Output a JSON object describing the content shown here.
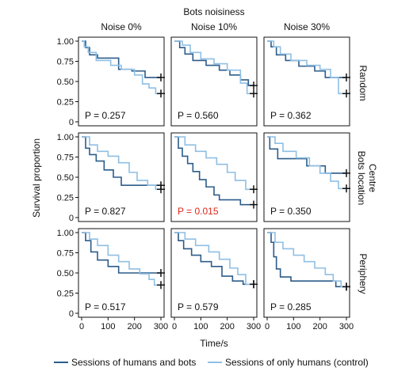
{
  "figure": {
    "top_title": "Bots noisiness",
    "columns": [
      "Noise 0%",
      "Noise 10%",
      "Noise 30%"
    ],
    "rows": [
      "Random",
      "Centre",
      "Periphery"
    ],
    "row_group_title": "Bots location",
    "ylabel": "Survival proportion",
    "xlabel": "Time/s",
    "legend": [
      {
        "name": "Sessions of humans and bots",
        "color": "#2c5c8a"
      },
      {
        "name": "Sessions of only humans (control)",
        "color": "#8fbfe3"
      }
    ],
    "y_ticks": [
      "1.00",
      "0.75",
      "0.50",
      "0.25",
      "0"
    ],
    "x_ticks": [
      "0",
      "100",
      "200",
      "300"
    ]
  },
  "chart_data": [
    {
      "type": "line",
      "row": "Random",
      "column": "Noise 0%",
      "p_value": "P = 0.257",
      "significant": false,
      "xlim": [
        0,
        300
      ],
      "ylim": [
        0,
        1
      ],
      "series": [
        {
          "name": "Sessions of humans and bots",
          "censor_at_end": true,
          "x": [
            0,
            15,
            30,
            60,
            140,
            190,
            240,
            300
          ],
          "y": [
            1.0,
            0.92,
            0.83,
            0.79,
            0.65,
            0.63,
            0.55,
            0.55
          ]
        },
        {
          "name": "Sessions of only humans (control)",
          "censor_at_end": true,
          "x": [
            0,
            10,
            25,
            55,
            110,
            150,
            200,
            230,
            255,
            280,
            300
          ],
          "y": [
            1.0,
            0.93,
            0.86,
            0.76,
            0.7,
            0.65,
            0.58,
            0.47,
            0.42,
            0.35,
            0.35
          ]
        }
      ]
    },
    {
      "type": "line",
      "row": "Random",
      "column": "Noise 10%",
      "p_value": "P = 0.560",
      "significant": false,
      "xlim": [
        0,
        300
      ],
      "ylim": [
        0,
        1
      ],
      "series": [
        {
          "name": "Sessions of humans and bots",
          "censor_at_end": true,
          "x": [
            0,
            20,
            40,
            70,
            120,
            170,
            210,
            250,
            280,
            300
          ],
          "y": [
            1.0,
            0.92,
            0.84,
            0.76,
            0.7,
            0.64,
            0.58,
            0.52,
            0.45,
            0.45
          ]
        },
        {
          "name": "Sessions of only humans (control)",
          "censor_at_end": true,
          "x": [
            0,
            30,
            60,
            100,
            150,
            200,
            250,
            275,
            300
          ],
          "y": [
            1.0,
            0.95,
            0.86,
            0.78,
            0.72,
            0.64,
            0.48,
            0.35,
            0.35
          ]
        }
      ]
    },
    {
      "type": "line",
      "row": "Random",
      "column": "Noise 30%",
      "p_value": "P = 0.362",
      "significant": false,
      "xlim": [
        0,
        300
      ],
      "ylim": [
        0,
        1
      ],
      "series": [
        {
          "name": "Sessions of humans and bots",
          "censor_at_end": true,
          "x": [
            0,
            15,
            35,
            70,
            120,
            180,
            220,
            300
          ],
          "y": [
            1.0,
            0.93,
            0.83,
            0.76,
            0.69,
            0.63,
            0.55,
            0.55
          ]
        },
        {
          "name": "Sessions of only humans (control)",
          "censor_at_end": true,
          "x": [
            0,
            25,
            50,
            90,
            150,
            200,
            240,
            270,
            300
          ],
          "y": [
            1.0,
            0.93,
            0.84,
            0.76,
            0.7,
            0.65,
            0.55,
            0.35,
            0.35
          ]
        }
      ]
    },
    {
      "type": "line",
      "row": "Centre",
      "column": "Noise 0%",
      "p_value": "P = 0.827",
      "significant": false,
      "xlim": [
        0,
        300
      ],
      "ylim": [
        0,
        1
      ],
      "series": [
        {
          "name": "Sessions of humans and bots",
          "censor_at_end": true,
          "x": [
            0,
            15,
            30,
            55,
            85,
            120,
            150,
            200,
            300
          ],
          "y": [
            1.0,
            0.86,
            0.78,
            0.7,
            0.59,
            0.5,
            0.4,
            0.4,
            0.4
          ]
        },
        {
          "name": "Sessions of only humans (control)",
          "censor_at_end": true,
          "x": [
            0,
            30,
            60,
            100,
            140,
            180,
            210,
            250,
            280,
            300
          ],
          "y": [
            1.0,
            0.9,
            0.82,
            0.76,
            0.68,
            0.56,
            0.46,
            0.4,
            0.35,
            0.35
          ]
        }
      ]
    },
    {
      "type": "line",
      "row": "Centre",
      "column": "Noise 10%",
      "p_value": "P = 0.015",
      "significant": true,
      "xlim": [
        0,
        300
      ],
      "ylim": [
        0,
        1
      ],
      "series": [
        {
          "name": "Sessions of humans and bots",
          "censor_at_end": true,
          "x": [
            0,
            15,
            30,
            50,
            70,
            95,
            120,
            150,
            170,
            250,
            300
          ],
          "y": [
            1.0,
            0.86,
            0.76,
            0.67,
            0.57,
            0.47,
            0.38,
            0.28,
            0.22,
            0.16,
            0.16
          ]
        },
        {
          "name": "Sessions of only humans (control)",
          "censor_at_end": true,
          "x": [
            0,
            40,
            80,
            120,
            160,
            200,
            230,
            270,
            300
          ],
          "y": [
            1.0,
            0.9,
            0.82,
            0.74,
            0.66,
            0.56,
            0.46,
            0.35,
            0.35
          ]
        }
      ]
    },
    {
      "type": "line",
      "row": "Centre",
      "column": "Noise 30%",
      "p_value": "P = 0.350",
      "significant": false,
      "xlim": [
        0,
        300
      ],
      "ylim": [
        0,
        1
      ],
      "series": [
        {
          "name": "Sessions of humans and bots",
          "censor_at_end": true,
          "x": [
            0,
            10,
            40,
            150,
            220,
            300
          ],
          "y": [
            1.0,
            0.85,
            0.73,
            0.64,
            0.55,
            0.55
          ]
        },
        {
          "name": "Sessions of only humans (control)",
          "censor_at_end": true,
          "x": [
            0,
            30,
            60,
            110,
            160,
            200,
            240,
            270,
            300
          ],
          "y": [
            1.0,
            0.92,
            0.82,
            0.74,
            0.64,
            0.55,
            0.45,
            0.36,
            0.36
          ]
        }
      ]
    },
    {
      "type": "line",
      "row": "Periphery",
      "column": "Noise 0%",
      "p_value": "P = 0.517",
      "significant": false,
      "xlim": [
        0,
        300
      ],
      "ylim": [
        0,
        1
      ],
      "series": [
        {
          "name": "Sessions of humans and bots",
          "censor_at_end": true,
          "x": [
            0,
            15,
            35,
            60,
            100,
            140,
            300
          ],
          "y": [
            1.0,
            0.9,
            0.76,
            0.66,
            0.58,
            0.5,
            0.5
          ]
        },
        {
          "name": "Sessions of only humans (control)",
          "censor_at_end": true,
          "x": [
            0,
            30,
            60,
            100,
            140,
            180,
            220,
            255,
            275,
            300
          ],
          "y": [
            1.0,
            0.92,
            0.84,
            0.72,
            0.64,
            0.55,
            0.49,
            0.42,
            0.35,
            0.35
          ]
        }
      ]
    },
    {
      "type": "line",
      "row": "Periphery",
      "column": "Noise 10%",
      "p_value": "P = 0.579",
      "significant": false,
      "xlim": [
        0,
        300
      ],
      "ylim": [
        0,
        1
      ],
      "series": [
        {
          "name": "Sessions of humans and bots",
          "censor_at_end": true,
          "x": [
            0,
            15,
            35,
            65,
            100,
            140,
            180,
            220,
            260,
            300
          ],
          "y": [
            1.0,
            0.9,
            0.8,
            0.72,
            0.64,
            0.58,
            0.46,
            0.4,
            0.36,
            0.36
          ]
        },
        {
          "name": "Sessions of only humans (control)",
          "censor_at_end": true,
          "x": [
            0,
            40,
            80,
            130,
            170,
            210,
            240,
            270,
            300
          ],
          "y": [
            1.0,
            0.92,
            0.84,
            0.76,
            0.67,
            0.56,
            0.48,
            0.36,
            0.36
          ]
        }
      ]
    },
    {
      "type": "line",
      "row": "Periphery",
      "column": "Noise 30%",
      "p_value": "P = 0.285",
      "significant": false,
      "xlim": [
        0,
        300
      ],
      "ylim": [
        0,
        1
      ],
      "series": [
        {
          "name": "Sessions of humans and bots",
          "censor_at_end": true,
          "x": [
            0,
            15,
            25,
            35,
            50,
            90,
            260,
            300
          ],
          "y": [
            1.0,
            0.88,
            0.7,
            0.55,
            0.45,
            0.4,
            0.33,
            0.33
          ]
        },
        {
          "name": "Sessions of only humans (control)",
          "censor_at_end": true,
          "x": [
            0,
            30,
            60,
            100,
            140,
            180,
            220,
            250,
            280,
            300
          ],
          "y": [
            1.0,
            0.88,
            0.8,
            0.72,
            0.64,
            0.56,
            0.48,
            0.4,
            0.33,
            0.33
          ]
        }
      ]
    }
  ]
}
